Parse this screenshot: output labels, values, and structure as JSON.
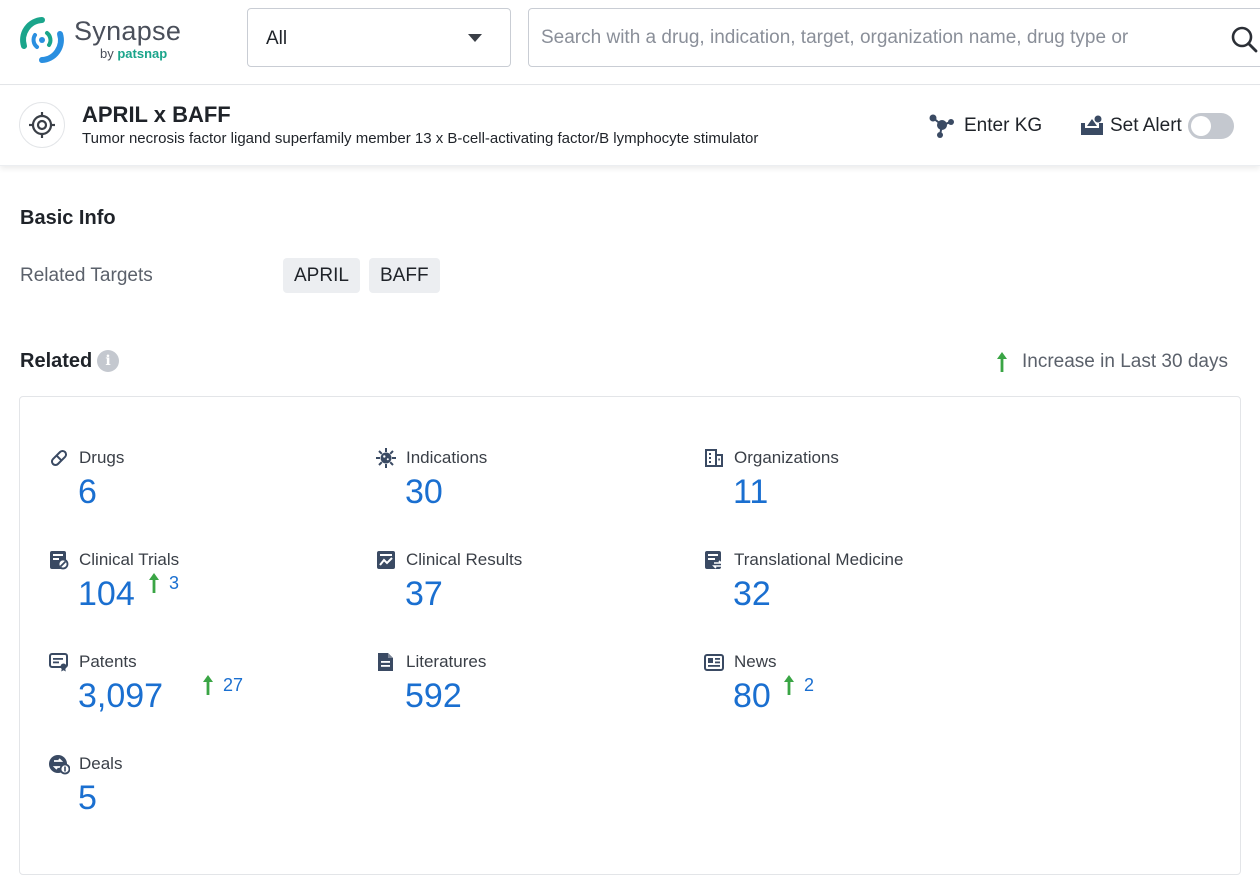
{
  "app": {
    "logo_name": "Synapse",
    "logo_by": "by",
    "logo_brand": "patsnap",
    "brand_color": "#1aa58b"
  },
  "search": {
    "scope_value": "All",
    "placeholder": "Search with a drug, indication, target, organization name, drug type or"
  },
  "entity": {
    "title": "APRIL x BAFF",
    "subtitle": "Tumor necrosis factor ligand superfamily member 13 x B-cell-activating factor/B lymphocyte stimulator",
    "icon": "target-icon",
    "enter_kg_label": "Enter KG",
    "set_alert_label": "Set Alert",
    "alert_enabled": false
  },
  "basic_info": {
    "title": "Basic Info",
    "related_targets_label": "Related Targets",
    "related_targets": [
      "APRIL",
      "BAFF"
    ]
  },
  "related": {
    "title": "Related",
    "legend_label": "Increase in Last 30 days",
    "accent_color": "#1a6fd0",
    "increase_color": "#3aa545",
    "stats": [
      {
        "label": "Drugs",
        "value": "6",
        "increase": null,
        "icon": "pill-icon"
      },
      {
        "label": "Indications",
        "value": "30",
        "increase": null,
        "icon": "virus-icon"
      },
      {
        "label": "Organizations",
        "value": "11",
        "increase": null,
        "icon": "building-icon"
      },
      {
        "label": "Clinical Trials",
        "value": "104",
        "increase": "3",
        "icon": "clinical-trial-icon"
      },
      {
        "label": "Clinical Results",
        "value": "37",
        "increase": null,
        "icon": "chart-doc-icon"
      },
      {
        "label": "Translational Medicine",
        "value": "32",
        "increase": null,
        "icon": "translational-icon"
      },
      {
        "label": "Patents",
        "value": "3,097",
        "increase": "27",
        "icon": "patent-icon"
      },
      {
        "label": "Literatures",
        "value": "592",
        "increase": null,
        "icon": "literature-icon"
      },
      {
        "label": "News",
        "value": "80",
        "increase": "2",
        "icon": "news-icon"
      },
      {
        "label": "Deals",
        "value": "5",
        "increase": null,
        "icon": "deal-icon"
      }
    ]
  }
}
